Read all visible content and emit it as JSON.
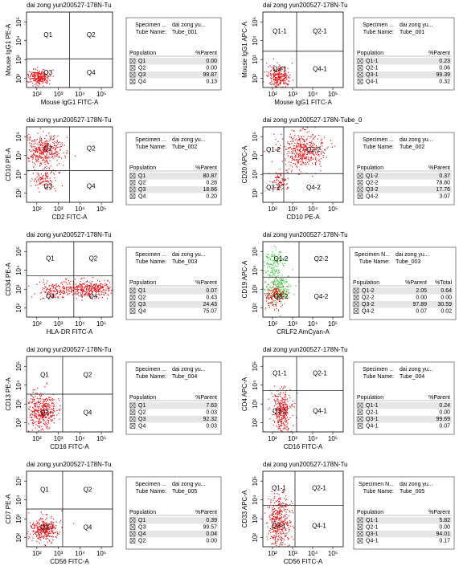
{
  "ticks": [
    "10²",
    "10³",
    "10⁴",
    "10⁵"
  ],
  "panels": [
    {
      "title": "dai zong yun200527-178N-Tu",
      "x_label": "Mouse IgG1 FITC-A",
      "y_label": "Mouse IgG1 PE-A",
      "quadrants": [
        "Q1",
        "Q2",
        "Q3",
        "Q4"
      ],
      "specimen_label": "Specimen ...",
      "specimen_value": "dai zong yu...",
      "tube_label": "Tube Name:",
      "tube_value": "Tube_001",
      "headers": [
        "Population",
        "%Parent"
      ],
      "rows": [
        [
          "Q1",
          "0.00"
        ],
        [
          "Q2",
          "0.00"
        ],
        [
          "Q3",
          "99.87"
        ],
        [
          "Q4",
          "0.13"
        ]
      ]
    },
    {
      "title": "dai zong yun200527-178N-Tu",
      "x_label": "Mouse IgG1 FITC-A",
      "y_label": "Mouse IgG1 APC-A",
      "quadrants": [
        "Q1-1",
        "Q2-1",
        "Q3-1",
        "Q4-1"
      ],
      "specimen_label": "Specimen ...",
      "specimen_value": "dai zong yu...",
      "tube_label": "Tube Name:",
      "tube_value": "Tube_001",
      "headers": [
        "Population",
        "%Parent"
      ],
      "rows": [
        [
          "Q1-1",
          "0.23"
        ],
        [
          "Q2-1",
          "0.06"
        ],
        [
          "Q3-1",
          "99.39"
        ],
        [
          "Q4-1",
          "0.32"
        ]
      ]
    },
    {
      "title": "dai zong yun200527-178N-Tu",
      "x_label": "CD2 FITC-A",
      "y_label": "CD10 PE-A",
      "quadrants": [
        "Q1",
        "Q2",
        "Q3",
        "Q4"
      ],
      "specimen_label": "Specimen ...",
      "specimen_value": "dai zong yu...",
      "tube_label": "Tube Name:",
      "tube_value": "Tube_002",
      "headers": [
        "Population",
        "%Parent"
      ],
      "rows": [
        [
          "Q1",
          "80.87"
        ],
        [
          "Q2",
          "0.28"
        ],
        [
          "Q3",
          "18.66"
        ],
        [
          "Q4",
          "0.20"
        ]
      ]
    },
    {
      "title": "dai zong yun200527-178N-Tube_0",
      "x_label": "CD10 PE-A",
      "y_label": "CD20 APC-A",
      "quadrants": [
        "Q1-2",
        "Q2-2",
        "Q3-2",
        "Q4-2"
      ],
      "specimen_label": "Specimen ...",
      "specimen_value": "dai zong yu...",
      "tube_label": "Tube Name:",
      "tube_value": "Tube_002",
      "headers": [
        "Population",
        "%Parent"
      ],
      "rows": [
        [
          "Q1-2",
          "0.37"
        ],
        [
          "Q2-2",
          "78.80"
        ],
        [
          "Q3-2",
          "17.76"
        ],
        [
          "Q4-2",
          "3.07"
        ]
      ]
    },
    {
      "title": "dai zong yun200527-178N-Tu",
      "x_label": "HLA-DR FITC-A",
      "y_label": "CD34 PE-A",
      "quadrants": [
        "Q1",
        "Q2",
        "Q3",
        "Q4"
      ],
      "specimen_label": "Specimen ...",
      "specimen_value": "dai zong yu...",
      "tube_label": "Tube Name:",
      "tube_value": "Tube_003",
      "headers": [
        "Population",
        "%Parent"
      ],
      "rows": [
        [
          "Q1",
          "0.07"
        ],
        [
          "Q2",
          "0.43"
        ],
        [
          "Q3",
          "24.43"
        ],
        [
          "Q4",
          "75.07"
        ]
      ]
    },
    {
      "title": "dai zong yun200527-178N-Tu",
      "x_label": "CRLF2 AmCyan-A",
      "y_label": "CD19 APC-A",
      "quadrants": [
        "Q1-2",
        "Q2-2",
        "Q3-2",
        "Q4-2"
      ],
      "specimen_label": "Specimen N...",
      "specimen_value": "dai zong yu...",
      "tube_label": "Tube Name:",
      "tube_value": "Tube_003",
      "headers": [
        "Population",
        "%Parent",
        "%Total"
      ],
      "rows": [
        [
          "Q1-2",
          "2.05",
          "0.64"
        ],
        [
          "Q2-2",
          "0.00",
          "0.00"
        ],
        [
          "Q3-2",
          "97.89",
          "30.59"
        ],
        [
          "Q4-2",
          "0.07",
          "0.02"
        ]
      ]
    },
    {
      "title": "dai zong yun200527-178N-Tu",
      "x_label": "CD16 FITC-A",
      "y_label": "CD13 PE-A",
      "quadrants": [
        "Q1",
        "Q2",
        "Q3",
        "Q4"
      ],
      "specimen_label": "Specimen ...",
      "specimen_value": "dai zong yu...",
      "tube_label": "Tube Name:",
      "tube_value": "Tube_004",
      "headers": [
        "Population",
        "%Parent"
      ],
      "rows": [
        [
          "Q1",
          "7.63"
        ],
        [
          "Q2",
          "0.03"
        ],
        [
          "Q3",
          "92.32"
        ],
        [
          "Q4",
          "0.03"
        ]
      ]
    },
    {
      "title": "dai zong yun200527-178N-Tu",
      "x_label": "CD16 FITC-A",
      "y_label": "CD4 APC-A",
      "quadrants": [
        "Q1-1",
        "Q2-1",
        "Q3-1",
        "Q4-1"
      ],
      "specimen_label": "Specimen ...",
      "specimen_value": "dai zong yu...",
      "tube_label": "Tube Name:",
      "tube_value": "Tube_004",
      "headers": [
        "Population",
        "%Parent"
      ],
      "rows": [
        [
          "Q1-1",
          "0.24"
        ],
        [
          "Q2-1",
          "0.00"
        ],
        [
          "Q3-1",
          "99.69"
        ],
        [
          "Q4-1",
          "0.07"
        ]
      ]
    },
    {
      "title": "dai zong yun200527-178N-Tu",
      "x_label": "CD56 FITC-A",
      "y_label": "CD7 PE-A",
      "quadrants": [
        "Q1",
        "Q2",
        "Q3",
        "Q4"
      ],
      "specimen_label": "Specimen ...",
      "specimen_value": "dai zong yu...",
      "tube_label": "Tube Name:",
      "tube_value": "Tube_005",
      "headers": [
        "Population",
        "%Parent"
      ],
      "rows": [
        [
          "Q1",
          "0.39"
        ],
        [
          "Q3",
          "99.57"
        ],
        [
          "Q4",
          "0.04"
        ],
        [
          "Q2",
          "0.00"
        ]
      ]
    },
    {
      "title": "dai zong yun200527-178N-Tu",
      "x_label": "CD56 FITC-A",
      "y_label": "CD33 APC-A",
      "quadrants": [
        "Q1-1",
        "Q2-1",
        "Q3-1",
        "Q4-1"
      ],
      "specimen_label": "Specimen N...",
      "specimen_value": "dai zong yu...",
      "tube_label": "Tube Name:",
      "tube_value": "Tube_005",
      "headers": [
        "Population",
        "%Parent"
      ],
      "rows": [
        [
          "Q1-1",
          "5.82"
        ],
        [
          "Q2-1",
          "0.00"
        ],
        [
          "Q3-1",
          "94.01"
        ],
        [
          "Q4-1",
          "0.17"
        ]
      ]
    }
  ]
}
